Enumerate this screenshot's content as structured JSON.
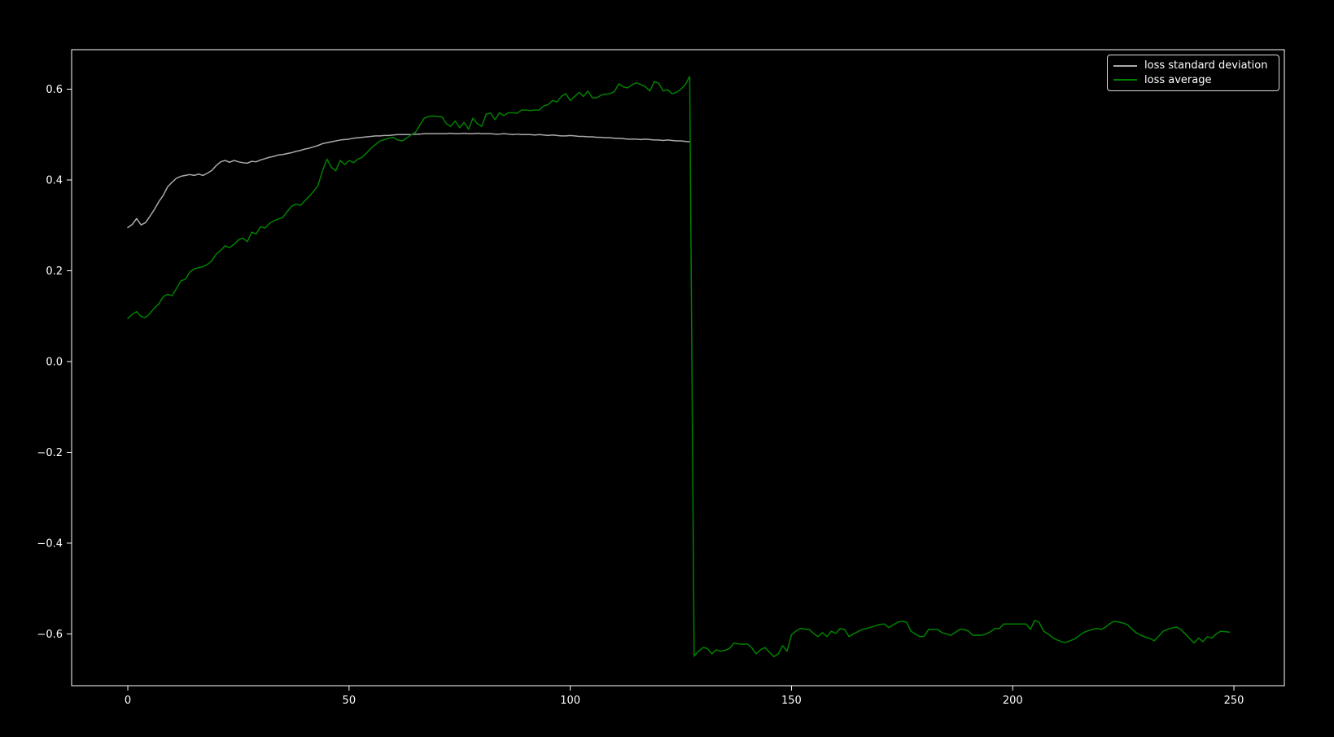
{
  "figure": {
    "background_color": "#000000",
    "text_color": "#ffffff",
    "spine_color": "#ffffff"
  },
  "legend": {
    "entries": [
      {
        "label": "loss standard deviation",
        "color": "#aaaaaa"
      },
      {
        "label": "loss average",
        "color": "#008000"
      }
    ]
  },
  "chart_data": {
    "type": "line",
    "title": "",
    "xlabel": "",
    "ylabel": "",
    "grid": false,
    "legend_position": "upper right",
    "xlim": [
      -12.7,
      261.4
    ],
    "ylim": [
      -0.714,
      0.687
    ],
    "x_ticks": [
      {
        "v": 0,
        "label": "0"
      },
      {
        "v": 50,
        "label": "50"
      },
      {
        "v": 100,
        "label": "100"
      },
      {
        "v": 150,
        "label": "150"
      },
      {
        "v": 200,
        "label": "200"
      },
      {
        "v": 250,
        "label": "250"
      }
    ],
    "y_ticks": [
      {
        "v": 0.6,
        "label": "0.6"
      },
      {
        "v": 0.4,
        "label": "0.4"
      },
      {
        "v": 0.2,
        "label": "0.2"
      },
      {
        "v": 0.0,
        "label": "0.0"
      },
      {
        "v": -0.2,
        "label": "−0.2"
      },
      {
        "v": -0.4,
        "label": "−0.4"
      },
      {
        "v": -0.6,
        "label": "−0.6"
      }
    ],
    "series": [
      {
        "name": "loss standard deviation",
        "color": "#aaaaaa",
        "x_start": 0,
        "x_step": 1,
        "y": [
          0.295,
          0.302,
          0.315,
          0.301,
          0.306,
          0.32,
          0.335,
          0.352,
          0.366,
          0.385,
          0.395,
          0.404,
          0.408,
          0.41,
          0.412,
          0.41,
          0.413,
          0.41,
          0.415,
          0.421,
          0.432,
          0.44,
          0.443,
          0.439,
          0.443,
          0.44,
          0.438,
          0.437,
          0.441,
          0.44,
          0.444,
          0.447,
          0.45,
          0.452,
          0.455,
          0.456,
          0.458,
          0.46,
          0.463,
          0.465,
          0.468,
          0.47,
          0.473,
          0.476,
          0.48,
          0.482,
          0.484,
          0.486,
          0.488,
          0.489,
          0.49,
          0.492,
          0.493,
          0.494,
          0.495,
          0.496,
          0.497,
          0.497,
          0.498,
          0.498,
          0.499,
          0.5,
          0.5,
          0.5,
          0.5,
          0.501,
          0.501,
          0.502,
          0.502,
          0.502,
          0.502,
          0.502,
          0.502,
          0.503,
          0.502,
          0.502,
          0.503,
          0.502,
          0.502,
          0.503,
          0.502,
          0.502,
          0.502,
          0.501,
          0.501,
          0.502,
          0.501,
          0.5,
          0.501,
          0.5,
          0.5,
          0.5,
          0.499,
          0.5,
          0.499,
          0.498,
          0.499,
          0.498,
          0.497,
          0.497,
          0.498,
          0.497,
          0.496,
          0.496,
          0.495,
          0.495,
          0.494,
          0.494,
          0.493,
          0.493,
          0.492,
          0.492,
          0.491,
          0.49,
          0.49,
          0.49,
          0.489,
          0.49,
          0.489,
          0.488,
          0.488,
          0.487,
          0.488,
          0.487,
          0.486,
          0.486,
          0.485,
          0.484
        ]
      },
      {
        "name": "loss average",
        "color": "#008000",
        "x_start": 0,
        "x_step": 1,
        "y": [
          0.095,
          0.104,
          0.11,
          0.099,
          0.097,
          0.106,
          0.118,
          0.127,
          0.143,
          0.148,
          0.145,
          0.161,
          0.178,
          0.181,
          0.197,
          0.204,
          0.207,
          0.209,
          0.214,
          0.222,
          0.237,
          0.245,
          0.255,
          0.251,
          0.258,
          0.268,
          0.272,
          0.264,
          0.285,
          0.281,
          0.297,
          0.294,
          0.304,
          0.31,
          0.314,
          0.317,
          0.33,
          0.342,
          0.347,
          0.344,
          0.354,
          0.364,
          0.375,
          0.388,
          0.42,
          0.446,
          0.428,
          0.42,
          0.443,
          0.434,
          0.443,
          0.438,
          0.446,
          0.45,
          0.46,
          0.47,
          0.478,
          0.486,
          0.489,
          0.492,
          0.494,
          0.488,
          0.486,
          0.492,
          0.499,
          0.505,
          0.521,
          0.536,
          0.54,
          0.541,
          0.54,
          0.539,
          0.524,
          0.518,
          0.53,
          0.515,
          0.527,
          0.512,
          0.536,
          0.524,
          0.518,
          0.545,
          0.547,
          0.533,
          0.548,
          0.542,
          0.548,
          0.548,
          0.547,
          0.554,
          0.554,
          0.553,
          0.554,
          0.554,
          0.563,
          0.566,
          0.575,
          0.572,
          0.584,
          0.59,
          0.575,
          0.584,
          0.593,
          0.584,
          0.596,
          0.581,
          0.581,
          0.587,
          0.589,
          0.59,
          0.595,
          0.612,
          0.605,
          0.603,
          0.61,
          0.614,
          0.61,
          0.605,
          0.596,
          0.617,
          0.613,
          0.596,
          0.599,
          0.59,
          0.593,
          0.6,
          0.61,
          0.628,
          -0.649,
          -0.638,
          -0.63,
          -0.632,
          -0.644,
          -0.635,
          -0.638,
          -0.636,
          -0.632,
          -0.62,
          -0.622,
          -0.623,
          -0.622,
          -0.63,
          -0.644,
          -0.635,
          -0.63,
          -0.64,
          -0.65,
          -0.644,
          -0.626,
          -0.638,
          -0.602,
          -0.594,
          -0.588,
          -0.589,
          -0.59,
          -0.599,
          -0.606,
          -0.597,
          -0.606,
          -0.594,
          -0.599,
          -0.588,
          -0.59,
          -0.606,
          -0.6,
          -0.595,
          -0.59,
          -0.588,
          -0.585,
          -0.582,
          -0.579,
          -0.578,
          -0.586,
          -0.58,
          -0.574,
          -0.572,
          -0.574,
          -0.594,
          -0.6,
          -0.606,
          -0.605,
          -0.59,
          -0.59,
          -0.59,
          -0.597,
          -0.6,
          -0.603,
          -0.597,
          -0.59,
          -0.59,
          -0.594,
          -0.603,
          -0.603,
          -0.603,
          -0.6,
          -0.595,
          -0.588,
          -0.588,
          -0.578,
          -0.578,
          -0.578,
          -0.578,
          -0.578,
          -0.578,
          -0.59,
          -0.57,
          -0.575,
          -0.594,
          -0.6,
          -0.608,
          -0.613,
          -0.617,
          -0.619,
          -0.615,
          -0.611,
          -0.604,
          -0.597,
          -0.593,
          -0.59,
          -0.588,
          -0.59,
          -0.585,
          -0.577,
          -0.572,
          -0.574,
          -0.576,
          -0.58,
          -0.59,
          -0.598,
          -0.603,
          -0.607,
          -0.61,
          -0.615,
          -0.605,
          -0.594,
          -0.59,
          -0.587,
          -0.585,
          -0.59,
          -0.6,
          -0.61,
          -0.62,
          -0.609,
          -0.617,
          -0.606,
          -0.609,
          -0.6,
          -0.594,
          -0.595,
          -0.596
        ]
      }
    ]
  }
}
